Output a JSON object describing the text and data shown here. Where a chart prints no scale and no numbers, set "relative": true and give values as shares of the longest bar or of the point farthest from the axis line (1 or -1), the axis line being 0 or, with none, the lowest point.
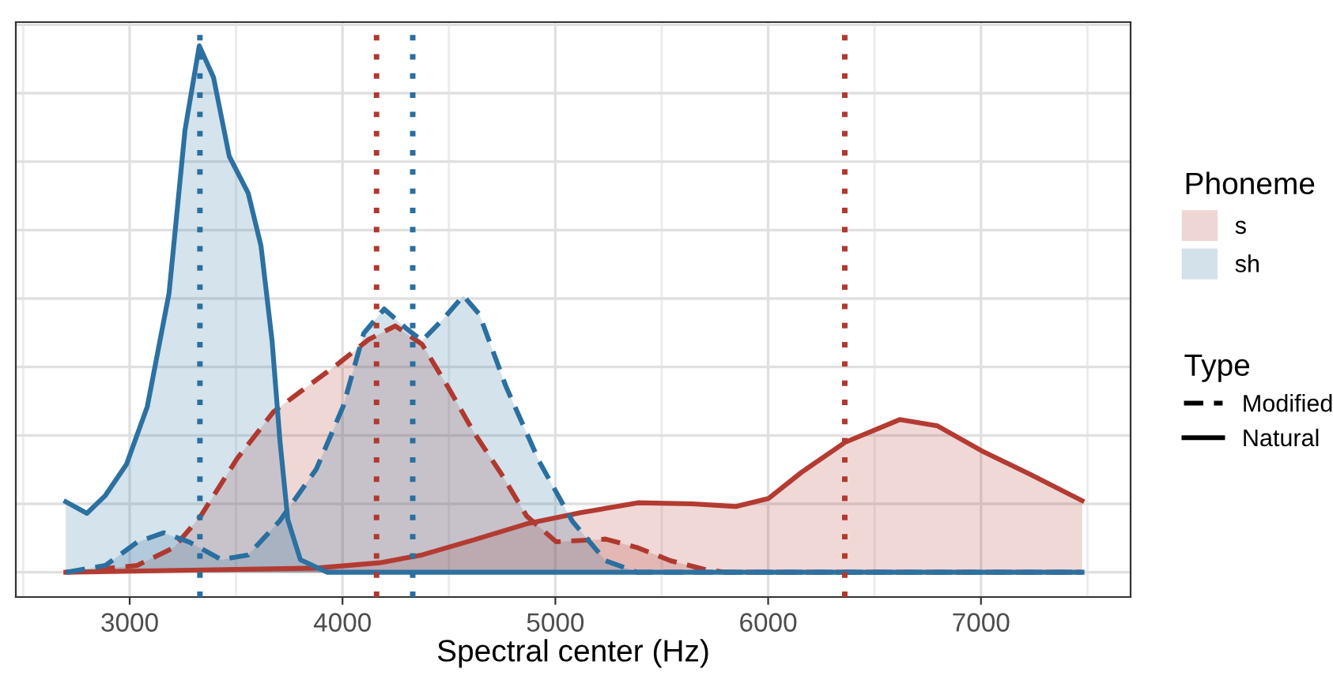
{
  "chart_data": {
    "type": "area",
    "relative": true,
    "xlabel": "Spectral center (Hz)",
    "legend_title": "Phoneme",
    "legend": "right",
    "grid": true,
    "tick_labels": "x",
    "xlim": [
      2465,
      7703
    ],
    "xticks": [
      3000,
      4000,
      5000,
      6000,
      7000
    ],
    "annotations": [
      "Type",
      "Modified",
      "Natural"
    ],
    "series": [
      {
        "name": "s",
        "color": "#b0392f",
        "line_style": "dashed",
        "x": [
          2700,
          3035,
          3208,
          3334,
          3505,
          3676,
          3825,
          3973,
          4122,
          4248,
          4374,
          4494,
          4620,
          4746,
          4865,
          5004,
          5236,
          5385,
          5541,
          5697,
          5800,
          7475
        ],
        "values": [
          0,
          0.013,
          0.047,
          0.107,
          0.216,
          0.305,
          0.35,
          0.394,
          0.442,
          0.468,
          0.433,
          0.353,
          0.264,
          0.187,
          0.107,
          0.058,
          0.063,
          0.047,
          0.022,
          0.006,
          0,
          0
        ]
      },
      {
        "color": "#b33b31",
        "line_style": "solid",
        "x": [
          2700,
          3877,
          4174,
          4374,
          4620,
          4865,
          5117,
          5388,
          5645,
          5850,
          6001,
          6157,
          6362,
          6618,
          6796,
          7002,
          7232,
          7475
        ],
        "values": [
          0,
          0.008,
          0.018,
          0.033,
          0.062,
          0.092,
          0.113,
          0.132,
          0.13,
          0.125,
          0.14,
          0.19,
          0.247,
          0.29,
          0.278,
          0.231,
          0.186,
          0.136
        ]
      },
      {
        "name": "sh",
        "color": "#2a6f9f",
        "line_style": "dashed",
        "x": [
          2700,
          2886,
          3035,
          3160,
          3282,
          3431,
          3557,
          3706,
          3877,
          4003,
          4100,
          4196,
          4300,
          4374,
          4471,
          4568,
          4643,
          4768,
          4925,
          5080,
          5236,
          5385,
          7475
        ],
        "values": [
          0,
          0.013,
          0.057,
          0.075,
          0.057,
          0.024,
          0.033,
          0.098,
          0.196,
          0.315,
          0.454,
          0.5,
          0.463,
          0.44,
          0.48,
          0.525,
          0.49,
          0.353,
          0.21,
          0.097,
          0.022,
          0,
          0
        ]
      },
      {
        "color": "#2c71a1",
        "line_style": "solid",
        "x": [
          2700,
          2799,
          2886,
          2985,
          3083,
          3185,
          3260,
          3327,
          3394,
          3468,
          3557,
          3617,
          3669,
          3706,
          3743,
          3802,
          3929,
          7475
        ],
        "values": [
          0.134,
          0.112,
          0.146,
          0.205,
          0.315,
          0.53,
          0.84,
          1.0,
          0.94,
          0.79,
          0.72,
          0.62,
          0.44,
          0.25,
          0.1,
          0.024,
          0,
          0
        ]
      }
    ],
    "ref_lines": [
      {
        "axis": "x",
        "value": 3330,
        "color": "#2a6f9f",
        "line_style": "dotted"
      },
      {
        "axis": "x",
        "value": 4160,
        "color": "#b0392f",
        "line_style": "dotted"
      },
      {
        "axis": "x",
        "value": 4330,
        "color": "#2a6f9f",
        "line_style": "dotted"
      },
      {
        "axis": "x",
        "value": 6360,
        "color": "#b0392f",
        "line_style": "dotted"
      }
    ]
  }
}
